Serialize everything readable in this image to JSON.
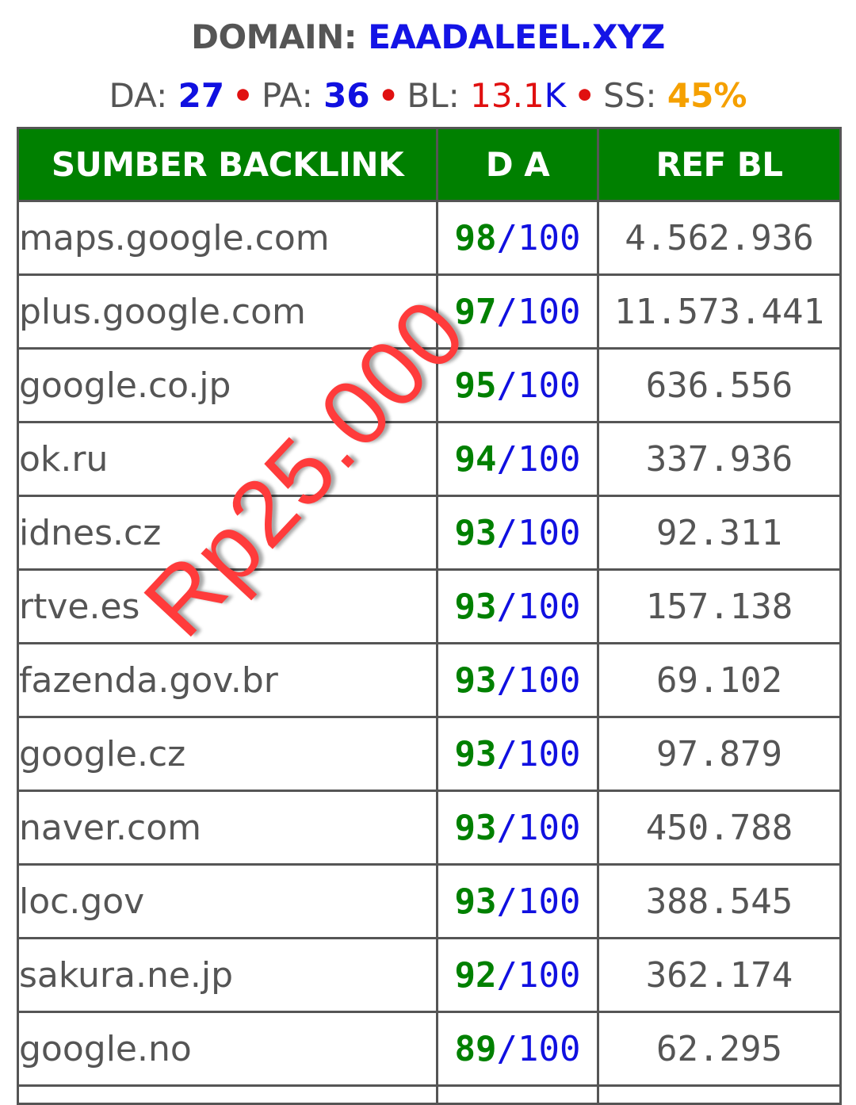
{
  "header": {
    "domain_label": "DOMAIN:",
    "domain_name": "EAADALEEL.XYZ",
    "da_label": "DA:",
    "da_value": "27",
    "pa_label": "PA:",
    "pa_value": "36",
    "bl_label": "BL:",
    "bl_value": "13.1",
    "bl_suffix": "K",
    "ss_label": "SS:",
    "ss_value": "45%",
    "separator": "•"
  },
  "table": {
    "columns": [
      "SUMBER BACKLINK",
      "D A",
      "REF BL"
    ],
    "da_max": "/100",
    "rows": [
      {
        "source": "maps.google.com",
        "da": "98",
        "ref_bl": "4.562.936"
      },
      {
        "source": "plus.google.com",
        "da": "97",
        "ref_bl": "11.573.441"
      },
      {
        "source": "google.co.jp",
        "da": "95",
        "ref_bl": "636.556"
      },
      {
        "source": "ok.ru",
        "da": "94",
        "ref_bl": "337.936"
      },
      {
        "source": "idnes.cz",
        "da": "93",
        "ref_bl": "92.311"
      },
      {
        "source": "rtve.es",
        "da": "93",
        "ref_bl": "157.138"
      },
      {
        "source": "fazenda.gov.br",
        "da": "93",
        "ref_bl": "69.102"
      },
      {
        "source": "google.cz",
        "da": "93",
        "ref_bl": "97.879"
      },
      {
        "source": "naver.com",
        "da": "93",
        "ref_bl": "450.788"
      },
      {
        "source": "loc.gov",
        "da": "93",
        "ref_bl": "388.545"
      },
      {
        "source": "sakura.ne.jp",
        "da": "92",
        "ref_bl": "362.174"
      },
      {
        "source": "google.no",
        "da": "89",
        "ref_bl": "62.295"
      }
    ]
  },
  "watermark": {
    "text": "Rp25.000"
  },
  "colors": {
    "header_green": "#008000",
    "score_green": "#008000",
    "accent_blue": "#1010e0",
    "accent_red": "#e01010",
    "accent_orange": "#f5a000",
    "watermark_red": "#ff3b3b"
  }
}
